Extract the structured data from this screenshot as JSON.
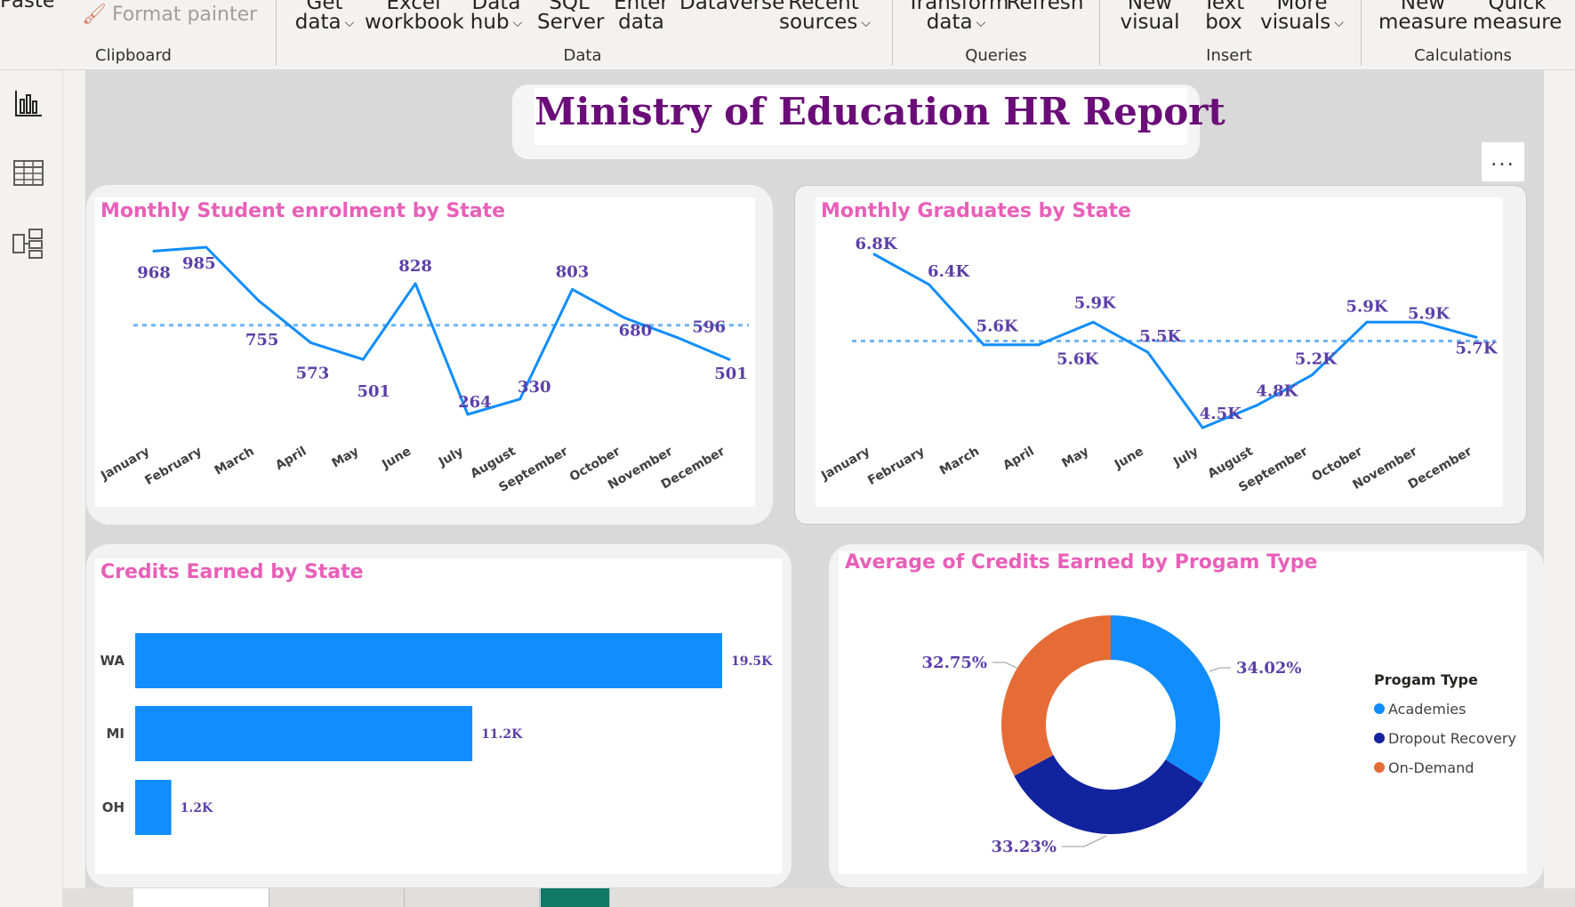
{
  "ribbon": {
    "clipboard": {
      "paste_label": "Paste",
      "format_painter_label": "Format painter",
      "group_label": "Clipboard"
    },
    "data": {
      "get_data": [
        "Get",
        "data"
      ],
      "excel_workbook": [
        "Excel",
        "workbook"
      ],
      "data_hub": [
        "Data",
        "hub"
      ],
      "sql_server": [
        "SQL",
        "Server"
      ],
      "enter_data": [
        "Enter",
        "data"
      ],
      "dataverse": [
        "Dataverse",
        ""
      ],
      "recent_sources": [
        "Recent",
        "sources"
      ],
      "group_label": "Data"
    },
    "queries": {
      "transform_data": [
        "Transform",
        "data"
      ],
      "refresh": "Refresh",
      "group_label": "Queries"
    },
    "insert": {
      "new_visual": [
        "New",
        "visual"
      ],
      "text_box": [
        "Text",
        "box"
      ],
      "more_visuals": [
        "More",
        "visuals"
      ],
      "group_label": "Insert"
    },
    "calculations": {
      "new_measure": [
        "New",
        "measure"
      ],
      "quick_measure": [
        "Quick",
        "measure"
      ],
      "group_label": "Calculations"
    }
  },
  "leftnav": {
    "icons": [
      "report-view-icon",
      "table-view-icon",
      "model-view-icon"
    ]
  },
  "report": {
    "title": "Ministry of Education HR Report",
    "more_options": "..."
  },
  "colors": {
    "line": "#118dff",
    "avg_line": "#6fb5f5",
    "label": "#5b3fa8",
    "title_pink": "#e85fb8",
    "title_purple": "#6a0d78",
    "academies": "#118dff",
    "dropout": "#12239e",
    "ondemand": "#e66c37"
  },
  "chart_data": [
    {
      "id": "enrolment",
      "type": "line",
      "title": "Monthly Student enrolment by State",
      "categories": [
        "January",
        "February",
        "March",
        "April",
        "May",
        "June",
        "July",
        "August",
        "September",
        "October",
        "November",
        "December"
      ],
      "values": [
        968,
        985,
        755,
        573,
        501,
        828,
        264,
        330,
        803,
        680,
        596,
        501
      ],
      "labels": [
        "968",
        "985",
        "755",
        "573",
        "501",
        "828",
        "264",
        "330",
        "803",
        "680",
        "596",
        "501"
      ],
      "average_line": true
    },
    {
      "id": "graduates",
      "type": "line",
      "title": "Monthly Graduates by State",
      "categories": [
        "January",
        "February",
        "March",
        "April",
        "May",
        "June",
        "July",
        "August",
        "September",
        "October",
        "November",
        "December"
      ],
      "values": [
        6800,
        6400,
        5600,
        5600,
        5900,
        5500,
        4500,
        4800,
        5200,
        5900,
        5900,
        5700
      ],
      "labels": [
        "6.8K",
        "6.4K",
        "5.6K",
        "5.6K",
        "5.9K",
        "5.5K",
        "4.5K",
        "4.8K",
        "5.2K",
        "5.9K",
        "5.9K",
        "5.7K"
      ],
      "average_line": true
    },
    {
      "id": "credits",
      "type": "bar",
      "orientation": "horizontal",
      "title": "Credits Earned by State",
      "categories": [
        "WA",
        "MI",
        "OH"
      ],
      "values": [
        19500,
        11200,
        1200
      ],
      "labels": [
        "19.5K",
        "11.2K",
        "1.2K"
      ]
    },
    {
      "id": "program",
      "type": "pie",
      "variant": "donut",
      "title": "Average of Credits Earned by Progam Type",
      "legend_title": "Progam Type",
      "legend_position": "right",
      "categories": [
        "Academies",
        "Dropout Recovery",
        "On-Demand"
      ],
      "values": [
        34.02,
        33.23,
        32.75
      ],
      "labels": [
        "34.02%",
        "33.23%",
        "32.75%"
      ]
    }
  ]
}
